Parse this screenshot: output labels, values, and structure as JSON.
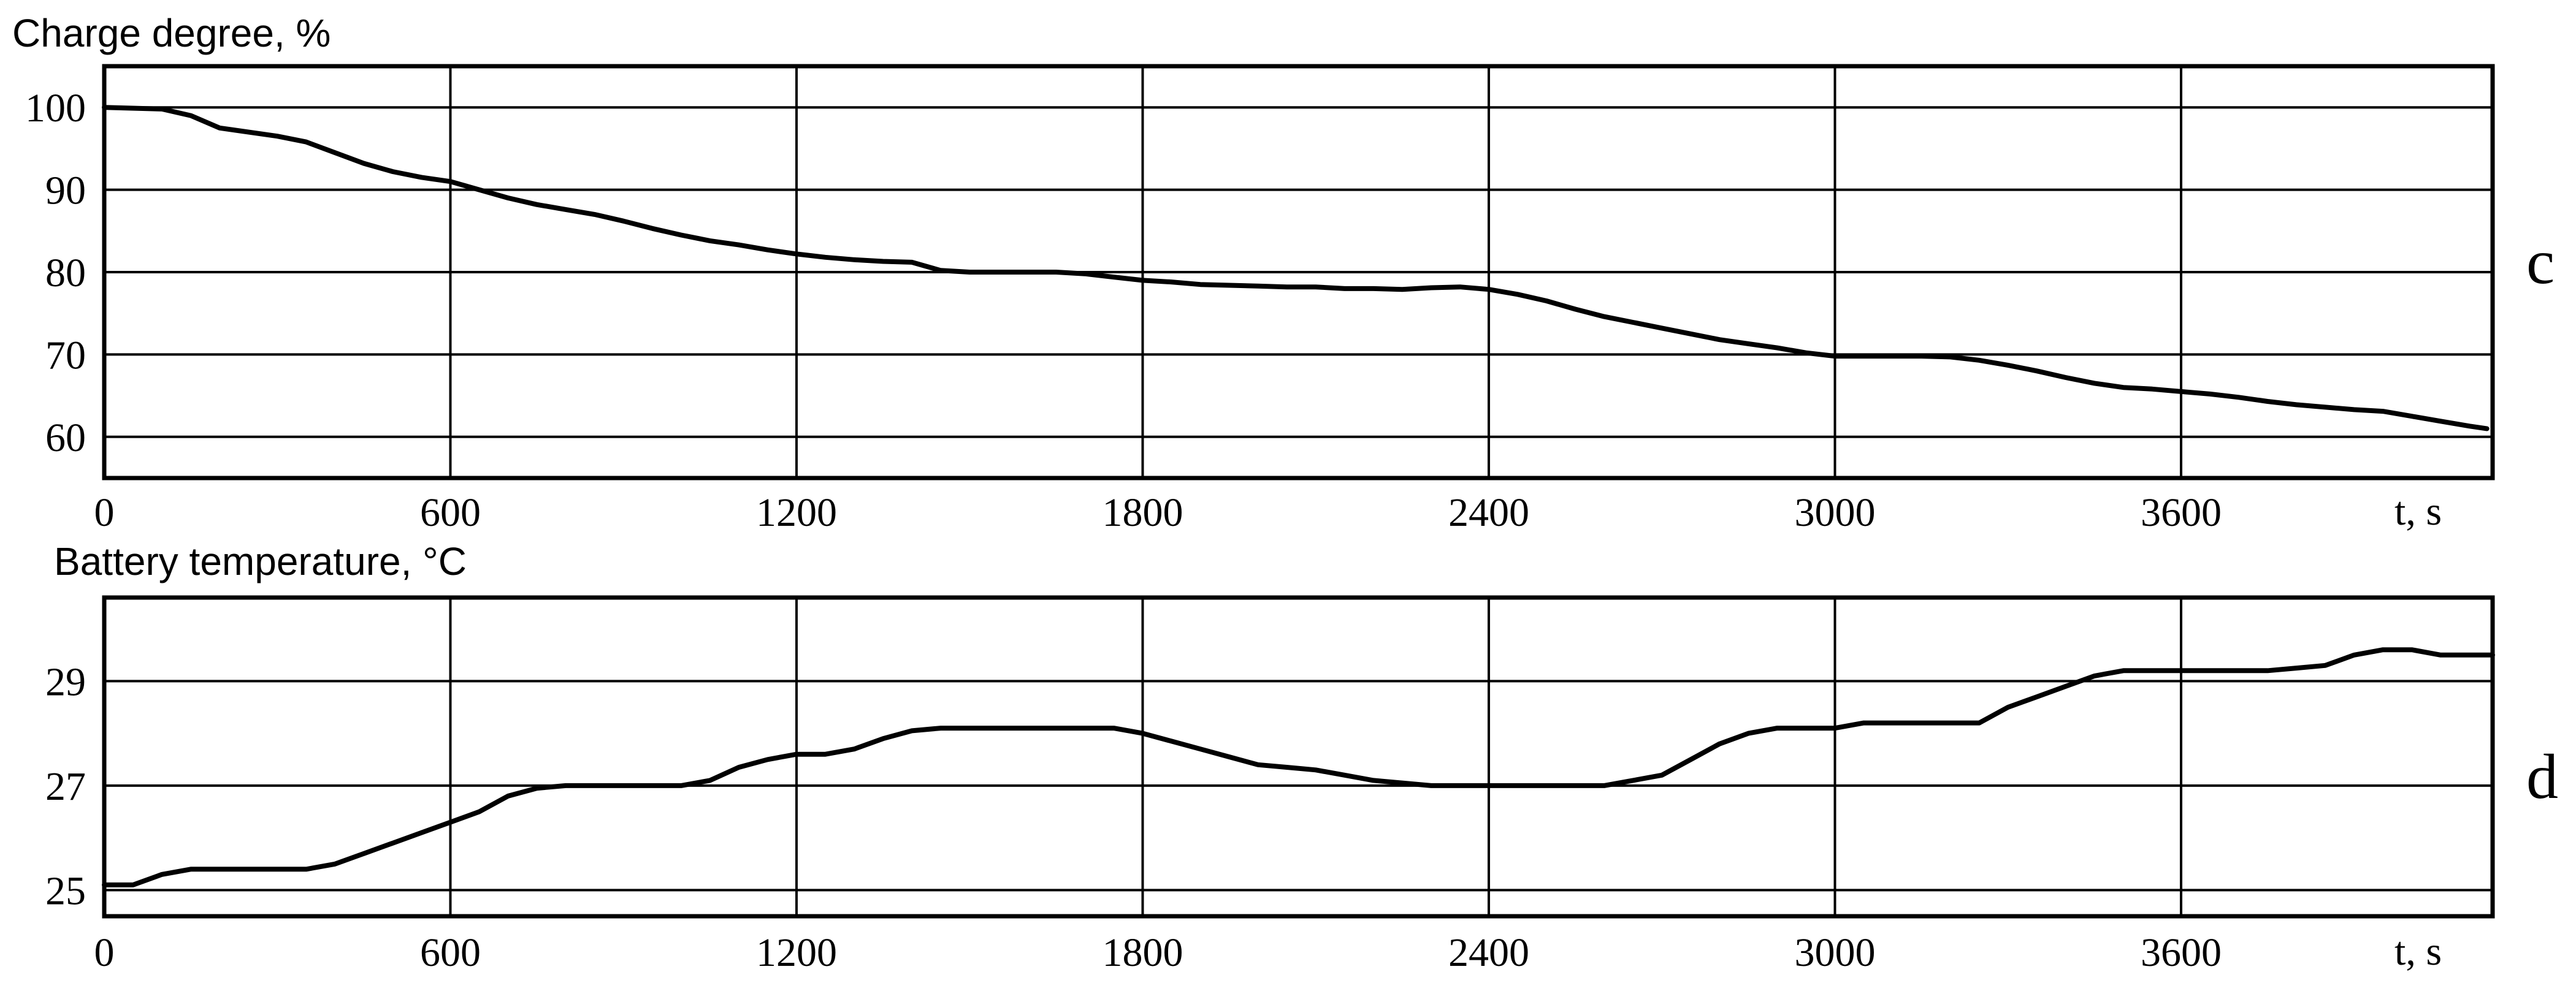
{
  "chart_data": [
    {
      "type": "line",
      "panel": "c",
      "ylabel": "Charge degree, %",
      "xlabel": "t, s",
      "xlim": [
        0,
        4140
      ],
      "ylim": [
        55,
        105
      ],
      "xticks": [
        0,
        600,
        1200,
        1800,
        2400,
        3000,
        3600
      ],
      "yticks": [
        60,
        70,
        80,
        90,
        100
      ],
      "grid": true,
      "x": [
        0,
        100,
        150,
        200,
        300,
        350,
        400,
        450,
        500,
        550,
        600,
        650,
        700,
        750,
        800,
        850,
        900,
        950,
        1000,
        1050,
        1100,
        1150,
        1200,
        1250,
        1300,
        1350,
        1400,
        1450,
        1500,
        1550,
        1600,
        1650,
        1700,
        1750,
        1800,
        1850,
        1900,
        1950,
        2000,
        2050,
        2100,
        2150,
        2200,
        2250,
        2300,
        2350,
        2400,
        2450,
        2500,
        2550,
        2600,
        2650,
        2700,
        2750,
        2800,
        2850,
        2900,
        2950,
        3000,
        3050,
        3100,
        3150,
        3200,
        3250,
        3300,
        3350,
        3400,
        3450,
        3500,
        3550,
        3600,
        3650,
        3700,
        3750,
        3800,
        3850,
        3900,
        3950,
        4000,
        4050,
        4100,
        4130
      ],
      "y": [
        100,
        99.8,
        99,
        97.5,
        96.5,
        95.8,
        94.5,
        93.2,
        92.2,
        91.5,
        91,
        90,
        89,
        88.2,
        87.6,
        87,
        86.2,
        85.3,
        84.5,
        83.8,
        83.3,
        82.7,
        82.2,
        81.8,
        81.5,
        81.3,
        81.2,
        80.2,
        80,
        80,
        80,
        80,
        79.8,
        79.4,
        79,
        78.8,
        78.5,
        78.4,
        78.3,
        78.2,
        78.2,
        78,
        78,
        77.9,
        78.1,
        78.2,
        77.9,
        77.3,
        76.5,
        75.5,
        74.6,
        73.9,
        73.2,
        72.5,
        71.8,
        71.3,
        70.8,
        70.2,
        69.8,
        69.8,
        69.8,
        69.8,
        69.7,
        69.3,
        68.7,
        68,
        67.2,
        66.5,
        66,
        65.8,
        65.5,
        65.2,
        64.8,
        64.3,
        63.9,
        63.6,
        63.3,
        63.1,
        62.5,
        61.9,
        61.3,
        61
      ]
    },
    {
      "type": "line",
      "panel": "d",
      "ylabel": "Battery temperature, °C",
      "xlabel": "t, s",
      "xlim": [
        0,
        4140
      ],
      "ylim": [
        24.5,
        30.6
      ],
      "xticks": [
        0,
        600,
        1200,
        1800,
        2400,
        3000,
        3600
      ],
      "yticks": [
        25,
        27,
        29
      ],
      "grid": true,
      "x": [
        0,
        50,
        100,
        150,
        200,
        250,
        300,
        350,
        400,
        450,
        500,
        550,
        600,
        650,
        700,
        750,
        800,
        850,
        900,
        950,
        1000,
        1050,
        1100,
        1150,
        1200,
        1250,
        1300,
        1350,
        1400,
        1450,
        1500,
        1550,
        1600,
        1650,
        1700,
        1750,
        1800,
        1850,
        1900,
        1950,
        2000,
        2050,
        2100,
        2150,
        2200,
        2250,
        2300,
        2350,
        2400,
        2450,
        2500,
        2550,
        2600,
        2650,
        2700,
        2750,
        2800,
        2850,
        2900,
        2950,
        3000,
        3050,
        3100,
        3150,
        3200,
        3250,
        3300,
        3350,
        3400,
        3450,
        3500,
        3550,
        3600,
        3650,
        3700,
        3750,
        3800,
        3850,
        3900,
        3950,
        4000,
        4050,
        4100,
        4140
      ],
      "y": [
        25.1,
        25.1,
        25.3,
        25.4,
        25.4,
        25.4,
        25.4,
        25.4,
        25.5,
        25.7,
        25.9,
        26.1,
        26.3,
        26.5,
        26.8,
        26.95,
        27,
        27,
        27,
        27,
        27,
        27.1,
        27.35,
        27.5,
        27.6,
        27.6,
        27.7,
        27.9,
        28.05,
        28.1,
        28.1,
        28.1,
        28.1,
        28.1,
        28.1,
        28.1,
        28,
        27.85,
        27.7,
        27.55,
        27.4,
        27.35,
        27.3,
        27.2,
        27.1,
        27.05,
        27,
        27,
        27,
        27,
        27,
        27,
        27,
        27.1,
        27.2,
        27.5,
        27.8,
        28,
        28.1,
        28.1,
        28.1,
        28.2,
        28.2,
        28.2,
        28.2,
        28.2,
        28.5,
        28.7,
        28.9,
        29.1,
        29.2,
        29.2,
        29.2,
        29.2,
        29.2,
        29.2,
        29.25,
        29.3,
        29.5,
        29.6,
        29.6,
        29.5,
        29.5,
        29.5
      ]
    }
  ],
  "panels": [
    {
      "letter": "c",
      "ylabel": "Charge degree, %",
      "xlabel": "t, s"
    },
    {
      "letter": "d",
      "ylabel": "Battery temperature, °C",
      "xlabel": "t, s"
    }
  ]
}
